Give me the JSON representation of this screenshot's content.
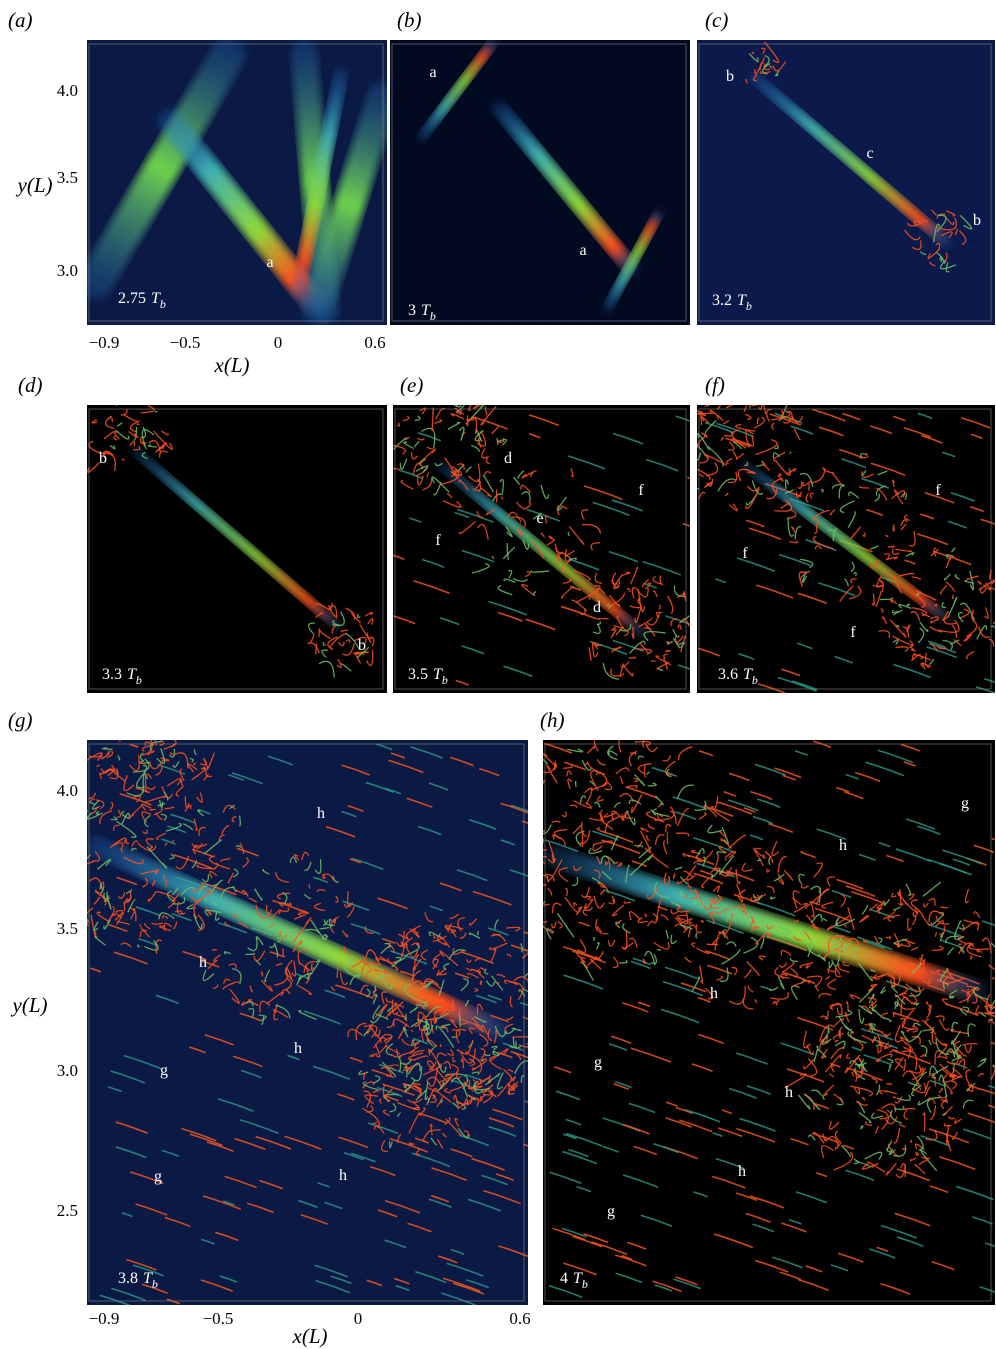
{
  "panels": [
    {
      "label": "(a)",
      "time": {
        "number": "2.75",
        "symbol": "T",
        "subscript": "b"
      },
      "annotations": [
        "a"
      ],
      "axes": {
        "xticks": [
          "−0.9",
          "−0.5",
          "0",
          "0.6"
        ],
        "yticks": [
          "4.0",
          "3.5",
          "3.0"
        ],
        "xlabel": "x(L)",
        "ylabel": "y(L)"
      }
    },
    {
      "label": "(b)",
      "time": {
        "number": "3",
        "symbol": "T",
        "subscript": "b"
      },
      "annotations": [
        "a",
        "a"
      ]
    },
    {
      "label": "(c)",
      "time": {
        "number": "3.2",
        "symbol": "T",
        "subscript": "b"
      },
      "annotations": [
        "b",
        "c",
        "b"
      ]
    },
    {
      "label": "(d)",
      "time": {
        "number": "3.3",
        "symbol": "T",
        "subscript": "b"
      },
      "annotations": [
        "b",
        "b"
      ]
    },
    {
      "label": "(e)",
      "time": {
        "number": "3.5",
        "symbol": "T",
        "subscript": "b"
      },
      "annotations": [
        "d",
        "e",
        "d",
        "f",
        "f"
      ]
    },
    {
      "label": "(f)",
      "time": {
        "number": "3.6",
        "symbol": "T",
        "subscript": "b"
      },
      "annotations": [
        "f",
        "f",
        "f"
      ]
    },
    {
      "label": "(g)",
      "time": {
        "number": "3.8",
        "symbol": "T",
        "subscript": "b"
      },
      "annotations": [
        "h",
        "h",
        "h",
        "g",
        "g",
        "h"
      ],
      "axes": {
        "xticks": [
          "−0.9",
          "−0.5",
          "0",
          "0.6"
        ],
        "yticks": [
          "4.0",
          "3.5",
          "3.0",
          "2.5"
        ],
        "xlabel": "x(L)",
        "ylabel": "y(L)"
      }
    },
    {
      "label": "(h)",
      "time": {
        "number": "4",
        "symbol": "T",
        "subscript": "b"
      },
      "annotations": [
        "g",
        "h",
        "h",
        "g",
        "h",
        "h",
        "g"
      ]
    }
  ]
}
